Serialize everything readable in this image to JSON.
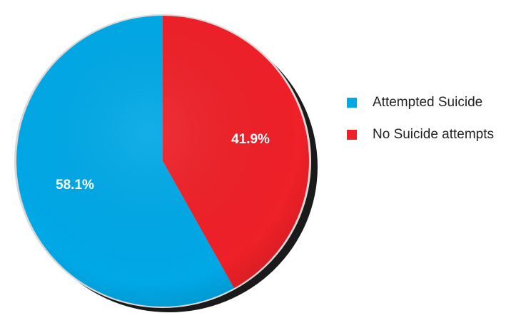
{
  "chart_data": {
    "type": "pie",
    "title": "",
    "slices": [
      {
        "label": "Attempted Suicide",
        "value": 58.1,
        "display": "58.1%",
        "color": "#00a8e6"
      },
      {
        "label": "No Suicide attempts",
        "value": 41.9,
        "display": "41.9%",
        "color": "#ee2028"
      }
    ],
    "legend_position": "right"
  }
}
